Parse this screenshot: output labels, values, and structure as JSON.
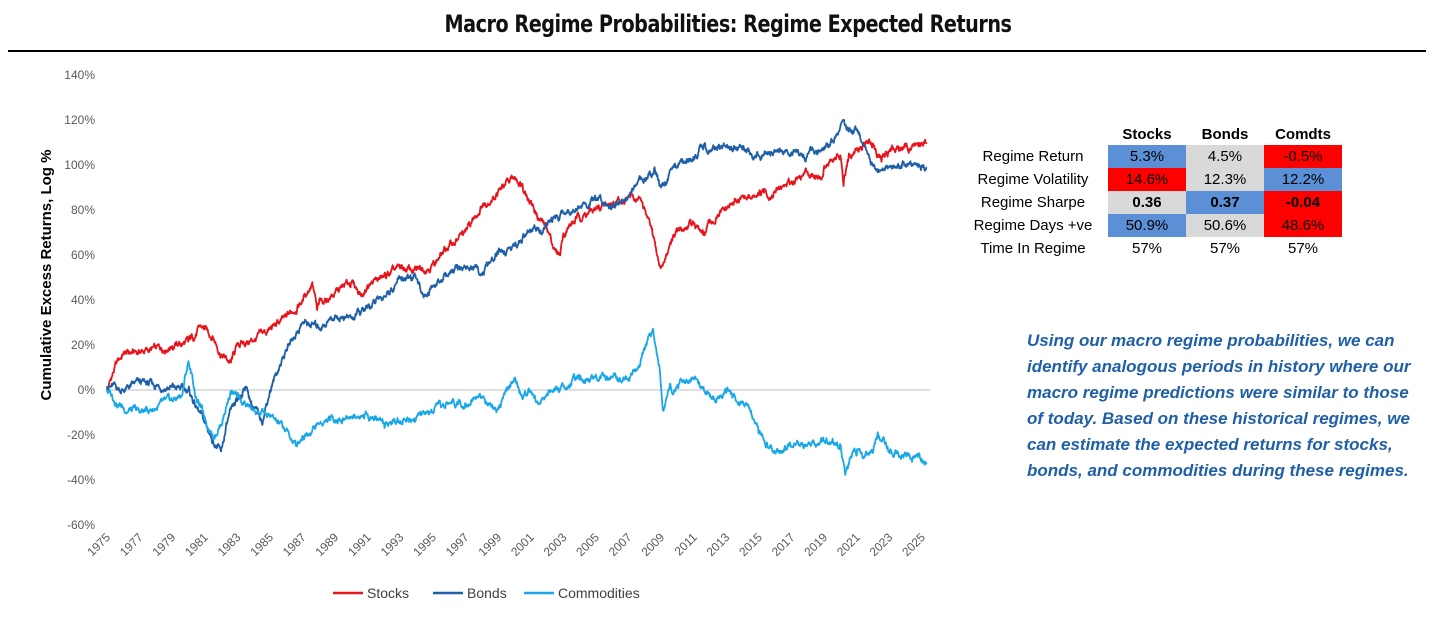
{
  "header": {
    "title": "Macro Regime Probabilities: Regime Expected Returns"
  },
  "chart_data": {
    "type": "line",
    "title": "Macro Regime Probabilities: Regime Expected Returns",
    "ylabel": "Cumulative Excess Returns, Log %",
    "xlabel": "",
    "ylim": [
      -60,
      140
    ],
    "yticks": [
      140,
      120,
      100,
      80,
      60,
      40,
      20,
      0,
      -20,
      -40,
      -60
    ],
    "ytick_labels": [
      "140%",
      "120%",
      "100%",
      "80%",
      "60%",
      "40%",
      "20%",
      "0%",
      "-20%",
      "-40%",
      "-60%"
    ],
    "xlim": [
      1975,
      2025.5
    ],
    "xticks": [
      "1975",
      "1977",
      "1979",
      "1981",
      "1983",
      "1985",
      "1987",
      "1989",
      "1991",
      "1993",
      "1995",
      "1997",
      "1999",
      "2001",
      "2003",
      "2005",
      "2007",
      "2009",
      "2011",
      "2013",
      "2015",
      "2017",
      "2019",
      "2021",
      "2023",
      "2025"
    ],
    "legend_position": "bottom-center",
    "series": [
      {
        "name": "Stocks",
        "color": "#e8141b",
        "x": [
          1975,
          1975.6,
          1976,
          1977,
          1978,
          1979,
          1980,
          1980.8,
          1981.5,
          1982,
          1982.6,
          1983,
          1984,
          1985,
          1986,
          1987,
          1987.6,
          1987.9,
          1988,
          1989,
          1990,
          1990.7,
          1991,
          1992,
          1993,
          1994,
          1995,
          1996,
          1997,
          1998,
          1998.7,
          1999,
          2000,
          2000.5,
          2001,
          2001.5,
          2002,
          2002.5,
          2002.8,
          2003,
          2004,
          2005,
          2006,
          2007,
          2007.8,
          2008,
          2008.5,
          2008.9,
          2009.1,
          2009.5,
          2010,
          2011,
          2011.6,
          2012,
          2013,
          2014,
          2015,
          2016,
          2017,
          2018,
          2018.9,
          2019,
          2020,
          2020.2,
          2020.5,
          2021,
          2022,
          2022.5,
          2023,
          2024,
          2025,
          2025.3
        ],
        "y": [
          0,
          12,
          16,
          17,
          18,
          20,
          21,
          28,
          24,
          16,
          12,
          20,
          22,
          27,
          32,
          40,
          48,
          35,
          38,
          43,
          48,
          42,
          47,
          50,
          54,
          53,
          56,
          64,
          70,
          82,
          86,
          88,
          94,
          92,
          84,
          76,
          72,
          62,
          60,
          70,
          77,
          80,
          83,
          86,
          84,
          80,
          68,
          55,
          55,
          64,
          70,
          74,
          68,
          74,
          80,
          86,
          86,
          88,
          93,
          97,
          95,
          100,
          104,
          90,
          102,
          107,
          110,
          103,
          106,
          108,
          110,
          110
        ]
      },
      {
        "name": "Bonds",
        "color": "#1f5fa8",
        "x": [
          1975,
          1976,
          1977,
          1978,
          1979,
          1980,
          1980.5,
          1981,
          1981.5,
          1982,
          1982.4,
          1983,
          1983.5,
          1984,
          1984.5,
          1985,
          1986,
          1987,
          1988,
          1989,
          1990,
          1991,
          1992,
          1993,
          1994,
          1994.5,
          1995,
          1996,
          1997,
          1998,
          1999,
          2000,
          2001,
          2002,
          2003,
          2004,
          2005,
          2006,
          2007,
          2008,
          2008.6,
          2009,
          2009.5,
          2010,
          2011,
          2011.7,
          2012,
          2013,
          2014,
          2015,
          2016,
          2017,
          2018,
          2019,
          2019.5,
          2020,
          2020.7,
          2021,
          2021.5,
          2022,
          2022.5,
          2023,
          2024,
          2025,
          2025.3
        ],
        "y": [
          2,
          0,
          3,
          2,
          1,
          0,
          -8,
          -15,
          -22,
          -28,
          -14,
          -5,
          2,
          -8,
          -14,
          0,
          18,
          30,
          28,
          33,
          32,
          36,
          42,
          50,
          49,
          42,
          46,
          52,
          55,
          52,
          60,
          64,
          70,
          73,
          79,
          82,
          84,
          83,
          86,
          94,
          99,
          90,
          96,
          100,
          104,
          110,
          106,
          108,
          106,
          104,
          106,
          106,
          105,
          106,
          110,
          117,
          116,
          115,
          108,
          100,
          98,
          99,
          100,
          100,
          99
        ]
      },
      {
        "name": "Commodities",
        "color": "#1aa7e8",
        "x": [
          1975,
          1976,
          1977,
          1978,
          1979,
          1979.6,
          1980,
          1980.5,
          1981,
          1981.5,
          1982,
          1982.6,
          1983,
          1984,
          1985,
          1986,
          1986.6,
          1987,
          1988,
          1989,
          1990,
          1991,
          1992,
          1993,
          1994,
          1995,
          1996,
          1997,
          1998,
          1999,
          2000,
          2000.5,
          2001,
          2001.5,
          2002,
          2003,
          2004,
          2005,
          2006,
          2007,
          2007.6,
          2008,
          2008.5,
          2008.9,
          2009.1,
          2009.5,
          2010,
          2011,
          2012,
          2013,
          2014,
          2014.5,
          2015,
          2016,
          2017,
          2018,
          2019,
          2020,
          2020.3,
          2020.7,
          2021,
          2022,
          2022.3,
          2023,
          2024,
          2025,
          2025.3
        ],
        "y": [
          0,
          -8,
          -10,
          -8,
          -5,
          -2,
          13,
          -4,
          -12,
          -20,
          -15,
          0,
          -4,
          -9,
          -12,
          -18,
          -25,
          -20,
          -15,
          -13,
          -12,
          -11,
          -14,
          -13,
          -12,
          -10,
          -6,
          -5,
          -3,
          -8,
          5,
          -4,
          0,
          -6,
          -2,
          2,
          4,
          7,
          6,
          5,
          10,
          18,
          27,
          10,
          -8,
          0,
          2,
          4,
          -3,
          -2,
          -5,
          -10,
          -20,
          -28,
          -25,
          -24,
          -23,
          -24,
          -38,
          -30,
          -30,
          -28,
          -18,
          -27,
          -28,
          -30,
          -33
        ]
      }
    ]
  },
  "stats_table": {
    "columns": [
      "Stocks",
      "Bonds",
      "Comdts"
    ],
    "rows": [
      {
        "label": "Regime Return",
        "values": [
          "5.3%",
          "4.5%",
          "-0.5%"
        ]
      },
      {
        "label": "Regime Volatility",
        "values": [
          "14.6%",
          "12.3%",
          "12.2%"
        ]
      },
      {
        "label": "Regime Sharpe",
        "values": [
          "0.36",
          "0.37",
          "-0.04"
        ]
      },
      {
        "label": "Regime Days +ve",
        "values": [
          "50.9%",
          "50.6%",
          "48.6%"
        ]
      },
      {
        "label": "Time In Regime",
        "values": [
          "57%",
          "57%",
          "57%"
        ]
      }
    ],
    "colors": {
      "red": "#ff0000",
      "blue": "#5b8fd6",
      "grey": "#d9d9d9"
    }
  },
  "commentary": {
    "text": "Using our macro regime probabilities, we can identify analogous periods in history where our macro regime predictions were similar to those of today. Based on these historical regimes, we can estimate the expected returns for stocks, bonds, and commodities during these regimes."
  }
}
